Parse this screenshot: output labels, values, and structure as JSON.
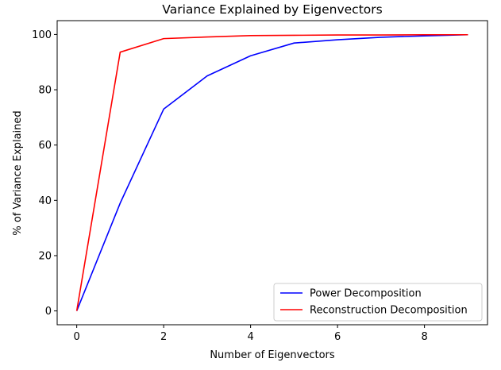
{
  "chart_data": {
    "type": "line",
    "title": "Variance Explained by Eigenvectors",
    "xlabel": "Number of Eigenvectors",
    "ylabel": "% of Variance Explained",
    "xlim": [
      -0.45,
      9.45
    ],
    "ylim": [
      -5,
      105
    ],
    "xticks": [
      0,
      2,
      4,
      6,
      8
    ],
    "yticks": [
      0,
      20,
      40,
      60,
      80,
      100
    ],
    "x": [
      0,
      1,
      2,
      3,
      4,
      5,
      6,
      7,
      8,
      9
    ],
    "series": [
      {
        "name": "Power Decomposition",
        "color": "#0000ff",
        "values": [
          0,
          39,
          73,
          85,
          92.3,
          96.9,
          98.1,
          99.0,
          99.5,
          99.9
        ]
      },
      {
        "name": "Reconstruction Decomposition",
        "color": "#ff0000",
        "values": [
          0,
          93.6,
          98.5,
          99.1,
          99.6,
          99.7,
          99.8,
          99.8,
          99.9,
          99.9
        ]
      }
    ],
    "grid": false,
    "legend_position": "lower-right"
  }
}
